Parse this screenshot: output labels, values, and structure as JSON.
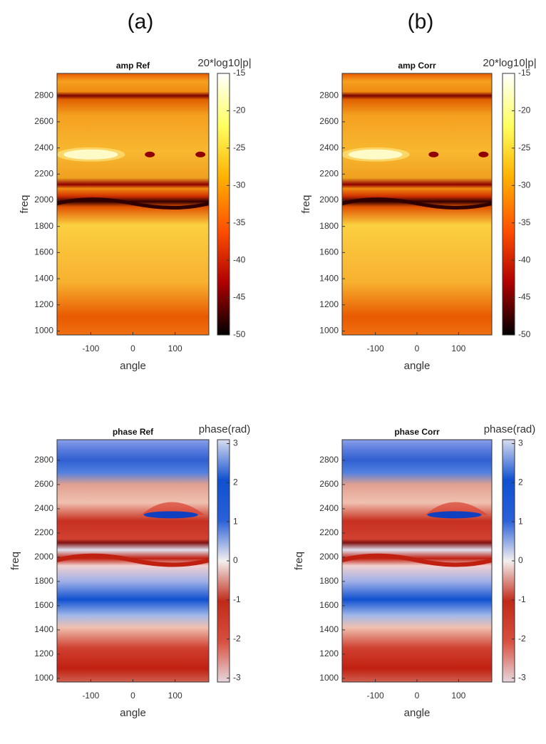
{
  "panel_labels": [
    "(a)",
    "(b)"
  ],
  "chart_data": [
    {
      "type": "heatmap",
      "title": "amp Ref",
      "xlabel": "angle",
      "ylabel": "freq",
      "xlim": [
        -180,
        180
      ],
      "xticks": [
        -100,
        0,
        100
      ],
      "ylim": [
        970,
        2970
      ],
      "yticks": [
        1000,
        1200,
        1400,
        1600,
        1800,
        2000,
        2200,
        2400,
        2600,
        2800
      ],
      "colorbar": {
        "label": "20*log10|p|",
        "lim": [
          -50,
          -15
        ],
        "ticks": [
          -50,
          -45,
          -40,
          -35,
          -30,
          -25,
          -20,
          -15
        ],
        "colormap": [
          "#000000",
          "#b00000",
          "#ff5000",
          "#ffb000",
          "#ffff60",
          "#ffffff"
        ]
      }
    },
    {
      "type": "heatmap",
      "title": "amp Corr",
      "xlabel": "angle",
      "ylabel": "freq",
      "xlim": [
        -180,
        180
      ],
      "xticks": [
        -100,
        0,
        100
      ],
      "ylim": [
        970,
        2970
      ],
      "yticks": [
        1000,
        1200,
        1400,
        1600,
        1800,
        2000,
        2200,
        2400,
        2600,
        2800
      ],
      "colorbar": {
        "label": "20*log10|p|",
        "lim": [
          -50,
          -15
        ],
        "ticks": [
          -50,
          -45,
          -40,
          -35,
          -30,
          -25,
          -20,
          -15
        ],
        "colormap": [
          "#000000",
          "#b00000",
          "#ff5000",
          "#ffb000",
          "#ffff60",
          "#ffffff"
        ]
      }
    },
    {
      "type": "heatmap",
      "title": "phase Ref",
      "xlabel": "angle",
      "ylabel": "freq",
      "xlim": [
        -180,
        180
      ],
      "xticks": [
        -100,
        0,
        100
      ],
      "ylim": [
        970,
        2970
      ],
      "yticks": [
        1000,
        1200,
        1400,
        1600,
        1800,
        2000,
        2200,
        2400,
        2600,
        2800
      ],
      "colorbar": {
        "label": "phase(rad)",
        "lim": [
          -3.1,
          3.1
        ],
        "ticks": [
          -3,
          -2,
          -1,
          0,
          1,
          2,
          3
        ],
        "colormap": [
          "#e6d6dc",
          "#d85040",
          "#c02a18",
          "#f4f0f0",
          "#2a60d8",
          "#1050d0",
          "#d8dcf0"
        ]
      }
    },
    {
      "type": "heatmap",
      "title": "phase Corr",
      "xlabel": "angle",
      "ylabel": "freq",
      "xlim": [
        -180,
        180
      ],
      "xticks": [
        -100,
        0,
        100
      ],
      "ylim": [
        970,
        2970
      ],
      "yticks": [
        1000,
        1200,
        1400,
        1600,
        1800,
        2000,
        2200,
        2400,
        2600,
        2800
      ],
      "colorbar": {
        "label": "phase(rad)",
        "lim": [
          -3.1,
          3.1
        ],
        "ticks": [
          -3,
          -2,
          -1,
          0,
          1,
          2,
          3
        ],
        "colormap": [
          "#e6d6dc",
          "#d85040",
          "#c02a18",
          "#f4f0f0",
          "#2a60d8",
          "#1050d0",
          "#d8dcf0"
        ]
      }
    }
  ]
}
